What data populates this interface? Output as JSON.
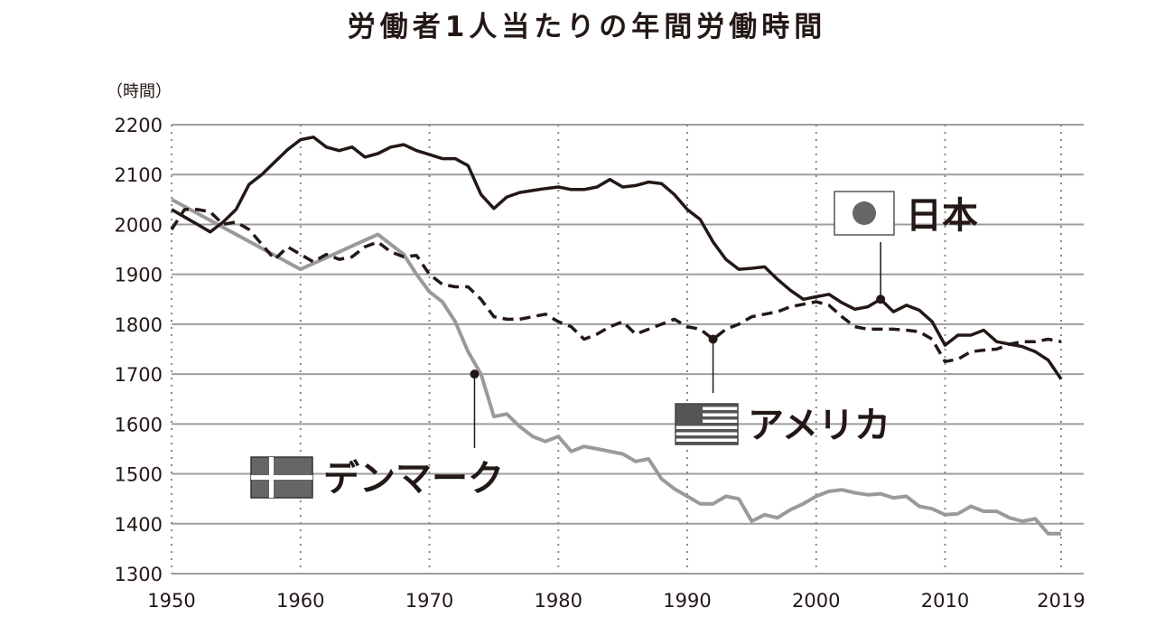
{
  "chart_data": {
    "type": "line",
    "title": "労働者1人当たりの年間労働時間",
    "ylabel": "（時間）",
    "xlabel": "",
    "xlim": [
      1950,
      2019
    ],
    "ylim": [
      1300,
      2200
    ],
    "yticks": [
      2200,
      2100,
      2000,
      1900,
      1800,
      1700,
      1600,
      1500,
      1400,
      1300
    ],
    "xticks": [
      1950,
      1960,
      1970,
      1980,
      1990,
      2000,
      2010,
      2019
    ],
    "grid": true,
    "series": [
      {
        "name": "日本",
        "style": "solid",
        "color": "#231815",
        "x": [
          1950,
          1951,
          1952,
          1953,
          1954,
          1955,
          1956,
          1957,
          1958,
          1959,
          1960,
          1961,
          1962,
          1963,
          1964,
          1965,
          1966,
          1967,
          1968,
          1969,
          1970,
          1971,
          1972,
          1973,
          1974,
          1975,
          1976,
          1977,
          1978,
          1979,
          1980,
          1981,
          1982,
          1983,
          1984,
          1985,
          1986,
          1987,
          1988,
          1989,
          1990,
          1991,
          1992,
          1993,
          1994,
          1995,
          1996,
          1997,
          1998,
          1999,
          2000,
          2001,
          2002,
          2003,
          2004,
          2005,
          2006,
          2007,
          2008,
          2009,
          2010,
          2011,
          2012,
          2013,
          2014,
          2015,
          2016,
          2017,
          2018,
          2019
        ],
        "values": [
          2030,
          2015,
          2000,
          1985,
          2005,
          2030,
          2080,
          2100,
          2125,
          2150,
          2170,
          2175,
          2155,
          2148,
          2155,
          2135,
          2142,
          2155,
          2160,
          2148,
          2140,
          2132,
          2132,
          2118,
          2060,
          2032,
          2055,
          2064,
          2068,
          2072,
          2075,
          2070,
          2070,
          2075,
          2090,
          2075,
          2078,
          2085,
          2082,
          2060,
          2030,
          2010,
          1965,
          1930,
          1910,
          1912,
          1915,
          1890,
          1868,
          1850,
          1855,
          1860,
          1843,
          1830,
          1835,
          1850,
          1825,
          1838,
          1828,
          1805,
          1758,
          1778,
          1778,
          1788,
          1765,
          1760,
          1755,
          1745,
          1728,
          1690
        ]
      },
      {
        "name": "アメリカ",
        "style": "dashed",
        "color": "#231815",
        "x": [
          1950,
          1951,
          1952,
          1953,
          1954,
          1955,
          1956,
          1957,
          1958,
          1959,
          1960,
          1961,
          1962,
          1963,
          1964,
          1965,
          1966,
          1967,
          1968,
          1969,
          1970,
          1971,
          1972,
          1973,
          1974,
          1975,
          1976,
          1977,
          1978,
          1979,
          1980,
          1981,
          1982,
          1983,
          1984,
          1985,
          1986,
          1987,
          1988,
          1989,
          1990,
          1991,
          1992,
          1993,
          1994,
          1995,
          1996,
          1997,
          1998,
          1999,
          2000,
          2001,
          2002,
          2003,
          2004,
          2005,
          2006,
          2007,
          2008,
          2009,
          2010,
          2011,
          2012,
          2013,
          2014,
          2015,
          2016,
          2017,
          2018,
          2019
        ],
        "values": [
          1990,
          2030,
          2030,
          2025,
          2000,
          2005,
          1990,
          1960,
          1930,
          1955,
          1940,
          1925,
          1940,
          1930,
          1935,
          1955,
          1965,
          1945,
          1935,
          1938,
          1900,
          1880,
          1875,
          1875,
          1850,
          1815,
          1810,
          1810,
          1815,
          1820,
          1805,
          1795,
          1770,
          1780,
          1795,
          1805,
          1780,
          1790,
          1800,
          1810,
          1795,
          1790,
          1770,
          1790,
          1800,
          1815,
          1820,
          1825,
          1835,
          1840,
          1845,
          1838,
          1815,
          1795,
          1790,
          1790,
          1790,
          1788,
          1785,
          1770,
          1725,
          1730,
          1745,
          1748,
          1750,
          1760,
          1765,
          1765,
          1770,
          1765
        ]
      },
      {
        "name": "デンマーク",
        "style": "solid",
        "color": "#9a9a9a",
        "x": [
          1950,
          1960,
          1966,
          1967,
          1968,
          1969,
          1970,
          1971,
          1972,
          1973,
          1974,
          1975,
          1976,
          1977,
          1978,
          1979,
          1980,
          1981,
          1982,
          1983,
          1984,
          1985,
          1986,
          1987,
          1988,
          1989,
          1990,
          1991,
          1992,
          1993,
          1994,
          1995,
          1996,
          1997,
          1998,
          1999,
          2000,
          2001,
          2002,
          2003,
          2004,
          2005,
          2006,
          2007,
          2008,
          2009,
          2010,
          2011,
          2012,
          2013,
          2014,
          2015,
          2016,
          2017,
          2018,
          2019
        ],
        "values": [
          2050,
          1910,
          1980,
          1960,
          1940,
          1900,
          1865,
          1845,
          1805,
          1745,
          1700,
          1615,
          1620,
          1595,
          1575,
          1565,
          1575,
          1545,
          1555,
          1550,
          1545,
          1540,
          1525,
          1530,
          1490,
          1470,
          1455,
          1440,
          1440,
          1455,
          1450,
          1405,
          1418,
          1412,
          1428,
          1440,
          1455,
          1465,
          1468,
          1462,
          1458,
          1460,
          1452,
          1455,
          1435,
          1430,
          1418,
          1420,
          1435,
          1425,
          1425,
          1412,
          1405,
          1410,
          1380,
          1380
        ]
      }
    ],
    "annotations": [
      {
        "label": "日本",
        "flag": "japan-flag",
        "x": 2005,
        "y": 1850
      },
      {
        "label": "アメリカ",
        "flag": "usa-flag",
        "x": 1992,
        "y": 1770
      },
      {
        "label": "デンマーク",
        "flag": "denmark-flag",
        "x": 1973.5,
        "y": 1700
      }
    ]
  }
}
